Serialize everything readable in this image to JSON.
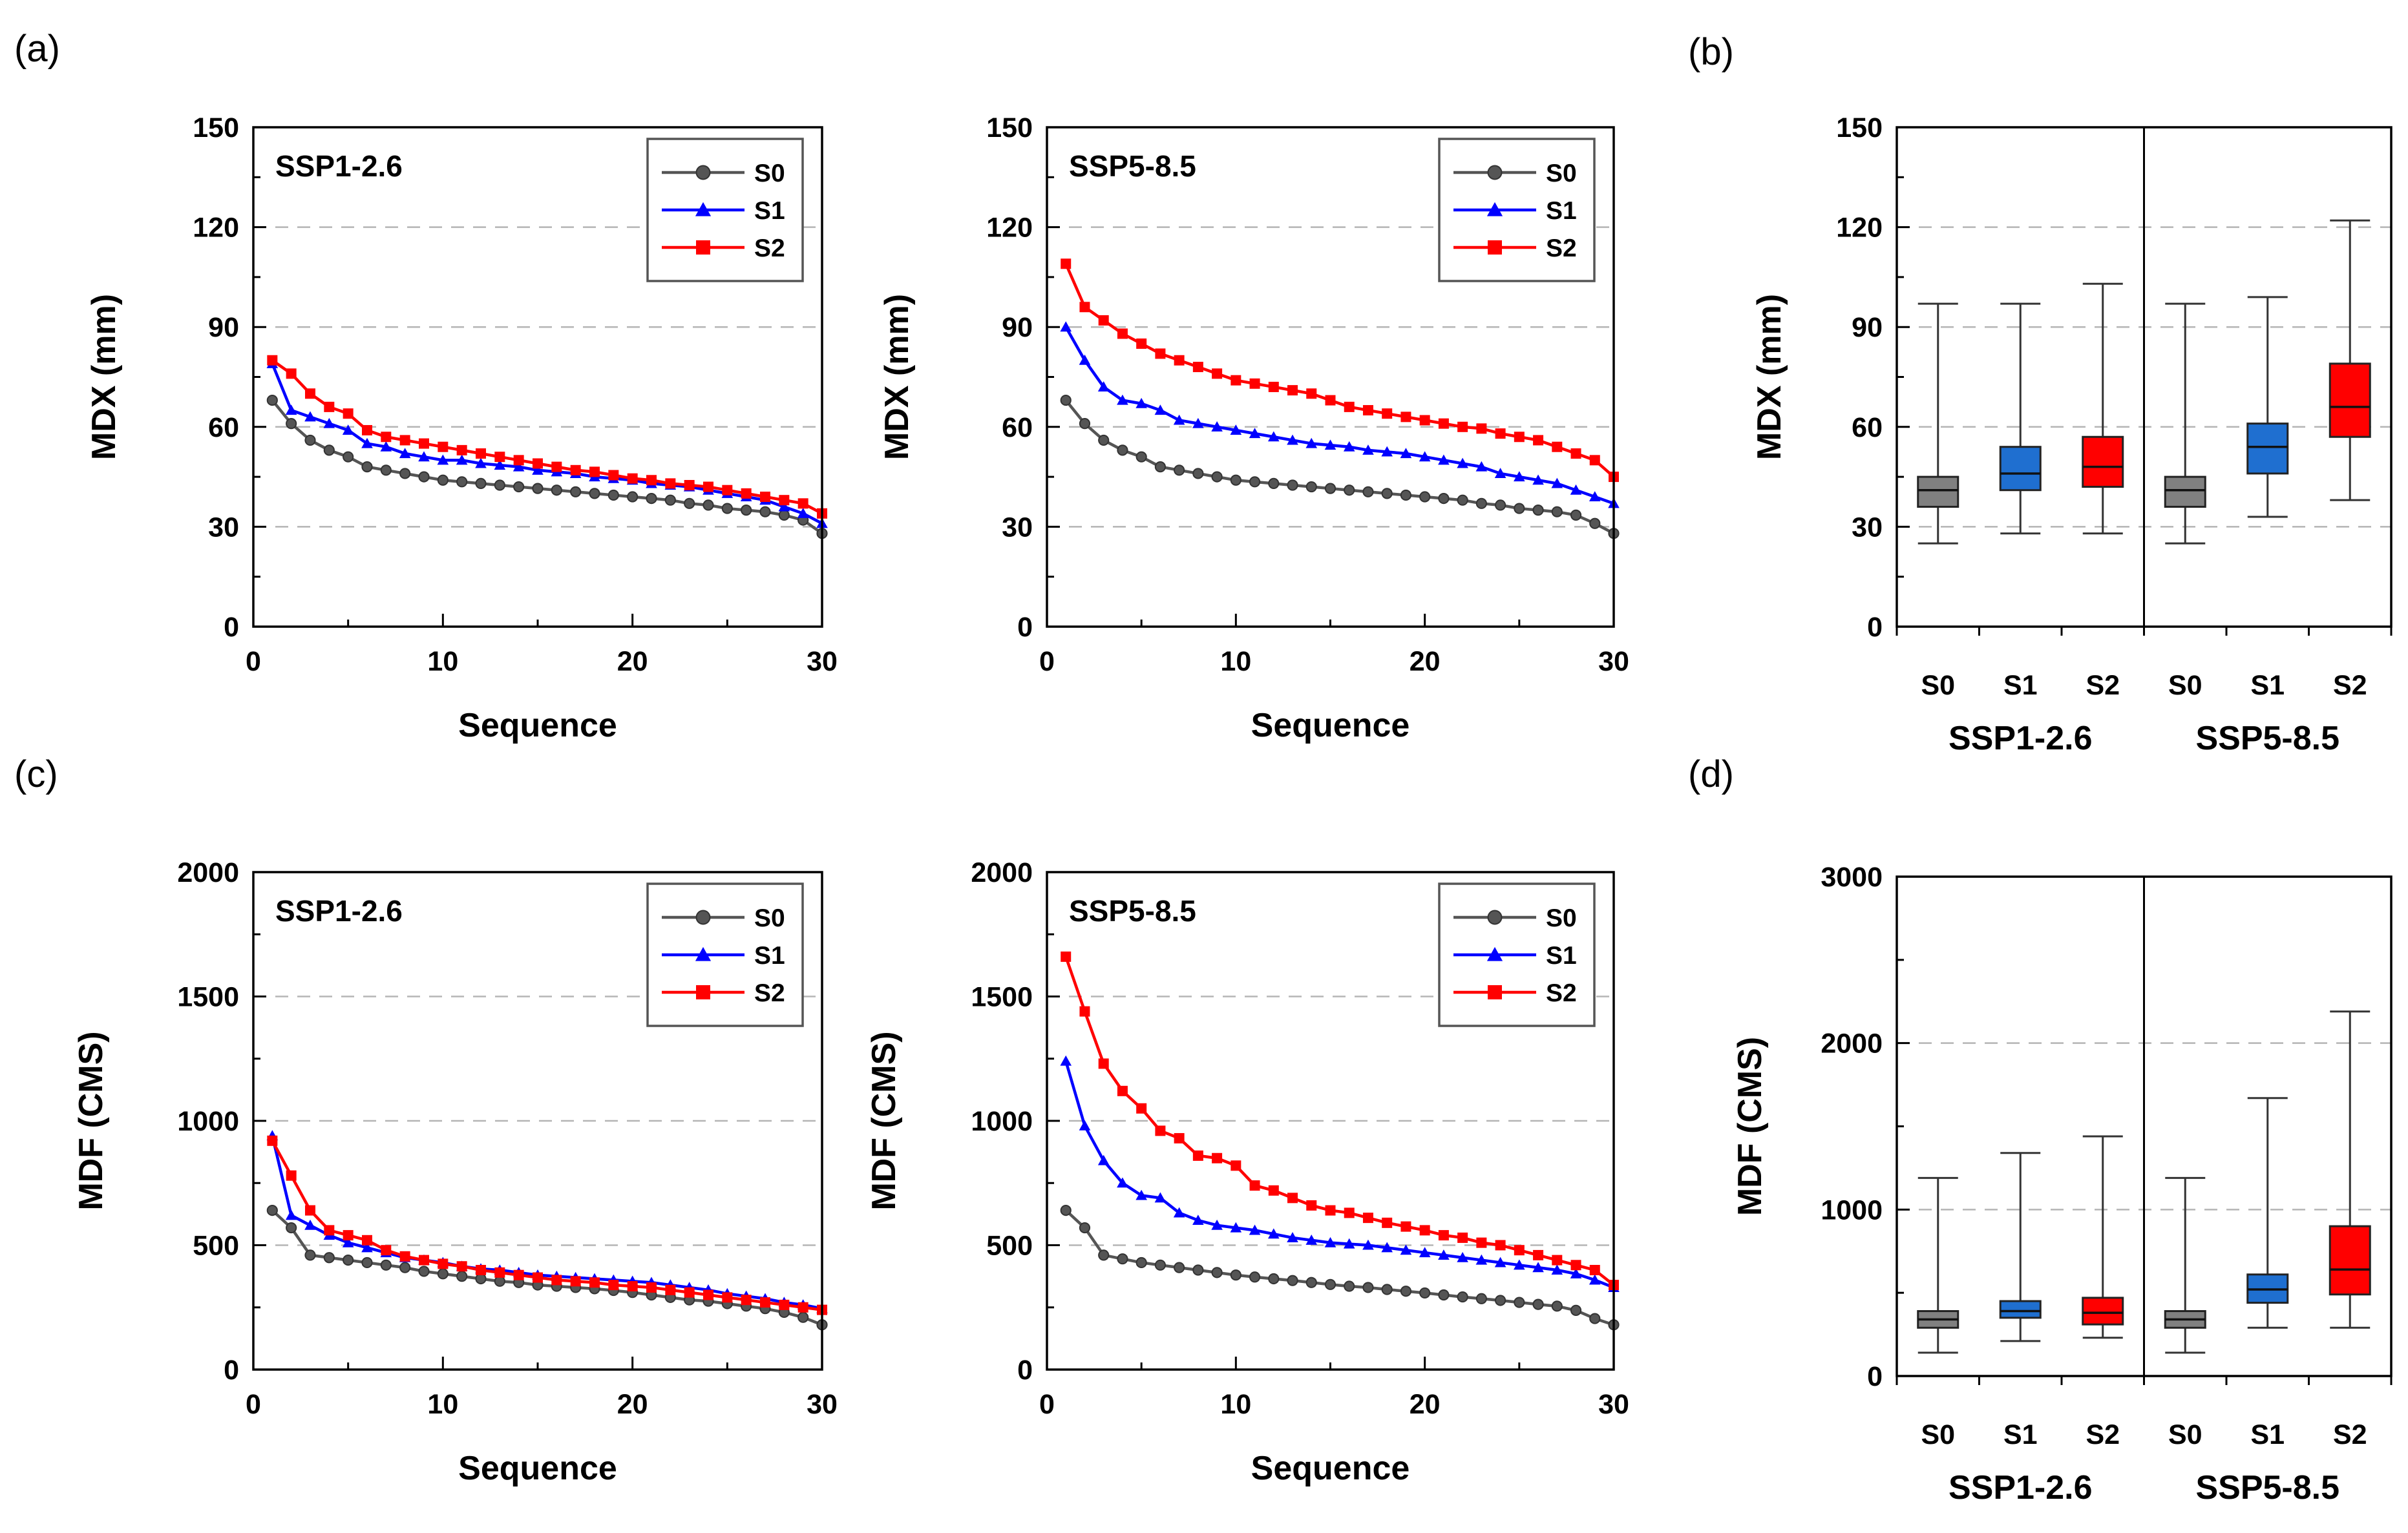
{
  "panel_letters": {
    "a": "(a)",
    "b": "(b)",
    "c": "(c)",
    "d": "(d)"
  },
  "colors": {
    "S0": "#555555",
    "S1": "#0000ff",
    "S2": "#ff0000",
    "S0_box": "#808080",
    "S1_box": "#1f6fd0",
    "S2_box": "#ff0000",
    "grid": "#b5b5b5"
  },
  "chart_data": [
    {
      "id": "a-left",
      "type": "line",
      "panel": "(a)",
      "title": "SSP1-2.6",
      "xlabel": "Sequence",
      "ylabel": "MDX (mm)",
      "xlim": [
        0,
        30
      ],
      "ylim": [
        0,
        150
      ],
      "xticks": [
        0,
        10,
        20,
        30
      ],
      "yticks": [
        0,
        30,
        60,
        90,
        120,
        150
      ],
      "grid": true,
      "legend": "top-right",
      "series": [
        {
          "name": "S0",
          "marker": "circle",
          "x": [
            1,
            2,
            3,
            4,
            5,
            6,
            7,
            8,
            9,
            10,
            11,
            12,
            13,
            14,
            15,
            16,
            17,
            18,
            19,
            20,
            21,
            22,
            23,
            24,
            25,
            26,
            27,
            28,
            29,
            30
          ],
          "values": [
            68,
            61,
            56,
            53,
            51,
            48,
            47,
            46,
            45,
            44,
            43.5,
            43,
            42.5,
            42,
            41.5,
            41,
            40.5,
            40,
            39.5,
            39,
            38.5,
            38,
            37,
            36.5,
            35.5,
            35,
            34.5,
            33.5,
            32,
            28
          ]
        },
        {
          "name": "S1",
          "marker": "triangle",
          "x": [
            1,
            2,
            3,
            4,
            5,
            6,
            7,
            8,
            9,
            10,
            11,
            12,
            13,
            14,
            15,
            16,
            17,
            18,
            19,
            20,
            21,
            22,
            23,
            24,
            25,
            26,
            27,
            28,
            29,
            30
          ],
          "values": [
            79,
            65,
            63,
            61,
            59,
            55,
            54,
            52,
            51,
            50,
            50,
            49,
            48.5,
            48,
            47,
            46.5,
            46,
            45,
            44.5,
            44,
            43,
            42.5,
            42,
            41,
            40,
            39,
            38,
            36,
            34,
            31
          ]
        },
        {
          "name": "S2",
          "marker": "square",
          "x": [
            1,
            2,
            3,
            4,
            5,
            6,
            7,
            8,
            9,
            10,
            11,
            12,
            13,
            14,
            15,
            16,
            17,
            18,
            19,
            20,
            21,
            22,
            23,
            24,
            25,
            26,
            27,
            28,
            29,
            30
          ],
          "values": [
            80,
            76,
            70,
            66,
            64,
            59,
            57,
            56,
            55,
            54,
            53,
            52,
            51,
            50,
            49,
            48,
            47,
            46.5,
            45.5,
            44.5,
            44,
            43,
            42.5,
            42,
            41,
            40,
            39,
            38,
            37,
            34
          ]
        }
      ]
    },
    {
      "id": "a-right",
      "type": "line",
      "panel": "(a)",
      "title": "SSP5-8.5",
      "xlabel": "Sequence",
      "ylabel": "MDX (mm)",
      "xlim": [
        0,
        30
      ],
      "ylim": [
        0,
        150
      ],
      "xticks": [
        0,
        10,
        20,
        30
      ],
      "yticks": [
        0,
        30,
        60,
        90,
        120,
        150
      ],
      "grid": true,
      "legend": "top-right",
      "series": [
        {
          "name": "S0",
          "marker": "circle",
          "x": [
            1,
            2,
            3,
            4,
            5,
            6,
            7,
            8,
            9,
            10,
            11,
            12,
            13,
            14,
            15,
            16,
            17,
            18,
            19,
            20,
            21,
            22,
            23,
            24,
            25,
            26,
            27,
            28,
            29,
            30
          ],
          "values": [
            68,
            61,
            56,
            53,
            51,
            48,
            47,
            46,
            45,
            44,
            43.5,
            43,
            42.5,
            42,
            41.5,
            41,
            40.5,
            40,
            39.5,
            39,
            38.5,
            38,
            37,
            36.5,
            35.5,
            35,
            34.5,
            33.5,
            31,
            28
          ]
        },
        {
          "name": "S1",
          "marker": "triangle",
          "x": [
            1,
            2,
            3,
            4,
            5,
            6,
            7,
            8,
            9,
            10,
            11,
            12,
            13,
            14,
            15,
            16,
            17,
            18,
            19,
            20,
            21,
            22,
            23,
            24,
            25,
            26,
            27,
            28,
            29,
            30
          ],
          "values": [
            90,
            80,
            72,
            68,
            67,
            65,
            62,
            61,
            60,
            59,
            58,
            57,
            56,
            55,
            54.5,
            54,
            53,
            52.5,
            52,
            51,
            50,
            49,
            48,
            46,
            45,
            44,
            43,
            41,
            39,
            37
          ]
        },
        {
          "name": "S2",
          "marker": "square",
          "x": [
            1,
            2,
            3,
            4,
            5,
            6,
            7,
            8,
            9,
            10,
            11,
            12,
            13,
            14,
            15,
            16,
            17,
            18,
            19,
            20,
            21,
            22,
            23,
            24,
            25,
            26,
            27,
            28,
            29,
            30
          ],
          "values": [
            109,
            96,
            92,
            88,
            85,
            82,
            80,
            78,
            76,
            74,
            73,
            72,
            71,
            70,
            68,
            66,
            65,
            64,
            63,
            62,
            61,
            60,
            59.5,
            58,
            57,
            56,
            54,
            52,
            50,
            45
          ]
        }
      ]
    },
    {
      "id": "b",
      "type": "box",
      "panel": "(b)",
      "ylabel": "MDX (mm)",
      "ylim": [
        0,
        150
      ],
      "yticks": [
        0,
        30,
        60,
        90,
        120,
        150
      ],
      "grid": true,
      "groups": [
        "SSP1-2.6",
        "SSP5-8.5"
      ],
      "boxes": [
        {
          "group": "SSP1-2.6",
          "label": "S0",
          "min": 25,
          "q1": 36,
          "median": 41,
          "q3": 45,
          "max": 97
        },
        {
          "group": "SSP1-2.6",
          "label": "S1",
          "min": 28,
          "q1": 41,
          "median": 46,
          "q3": 54,
          "max": 97
        },
        {
          "group": "SSP1-2.6",
          "label": "S2",
          "min": 28,
          "q1": 42,
          "median": 48,
          "q3": 57,
          "max": 103
        },
        {
          "group": "SSP5-8.5",
          "label": "S0",
          "min": 25,
          "q1": 36,
          "median": 41,
          "q3": 45,
          "max": 97
        },
        {
          "group": "SSP5-8.5",
          "label": "S1",
          "min": 33,
          "q1": 46,
          "median": 54,
          "q3": 61,
          "max": 99
        },
        {
          "group": "SSP5-8.5",
          "label": "S2",
          "min": 38,
          "q1": 57,
          "median": 66,
          "q3": 79,
          "max": 122
        }
      ]
    },
    {
      "id": "c-left",
      "type": "line",
      "panel": "(c)",
      "title": "SSP1-2.6",
      "xlabel": "Sequence",
      "ylabel": "MDF (CMS)",
      "xlim": [
        0,
        30
      ],
      "ylim": [
        0,
        2000
      ],
      "xticks": [
        0,
        10,
        20,
        30
      ],
      "yticks": [
        0,
        500,
        1000,
        1500,
        2000
      ],
      "grid": true,
      "legend": "top-right",
      "series": [
        {
          "name": "S0",
          "marker": "circle",
          "x": [
            1,
            2,
            3,
            4,
            5,
            6,
            7,
            8,
            9,
            10,
            11,
            12,
            13,
            14,
            15,
            16,
            17,
            18,
            19,
            20,
            21,
            22,
            23,
            24,
            25,
            26,
            27,
            28,
            29,
            30
          ],
          "values": [
            640,
            570,
            460,
            450,
            440,
            430,
            420,
            410,
            395,
            385,
            375,
            365,
            355,
            350,
            340,
            335,
            330,
            325,
            318,
            310,
            300,
            290,
            280,
            275,
            265,
            255,
            245,
            230,
            210,
            180
          ]
        },
        {
          "name": "S1",
          "marker": "triangle",
          "x": [
            1,
            2,
            3,
            4,
            5,
            6,
            7,
            8,
            9,
            10,
            11,
            12,
            13,
            14,
            15,
            16,
            17,
            18,
            19,
            20,
            21,
            22,
            23,
            24,
            25,
            26,
            27,
            28,
            29,
            30
          ],
          "values": [
            940,
            620,
            580,
            540,
            510,
            490,
            470,
            450,
            440,
            430,
            415,
            405,
            400,
            390,
            380,
            375,
            370,
            365,
            360,
            355,
            350,
            340,
            330,
            320,
            305,
            295,
            285,
            270,
            260,
            245
          ]
        },
        {
          "name": "S2",
          "marker": "square",
          "x": [
            1,
            2,
            3,
            4,
            5,
            6,
            7,
            8,
            9,
            10,
            11,
            12,
            13,
            14,
            15,
            16,
            17,
            18,
            19,
            20,
            21,
            22,
            23,
            24,
            25,
            26,
            27,
            28,
            29,
            30
          ],
          "values": [
            920,
            780,
            640,
            560,
            540,
            520,
            480,
            455,
            440,
            425,
            415,
            400,
            390,
            380,
            370,
            360,
            355,
            350,
            340,
            335,
            330,
            320,
            310,
            300,
            290,
            280,
            270,
            260,
            250,
            240
          ]
        }
      ]
    },
    {
      "id": "c-right",
      "type": "line",
      "panel": "(c)",
      "title": "SSP5-8.5",
      "xlabel": "Sequence",
      "ylabel": "MDF (CMS)",
      "xlim": [
        0,
        30
      ],
      "ylim": [
        0,
        2000
      ],
      "xticks": [
        0,
        10,
        20,
        30
      ],
      "yticks": [
        0,
        500,
        1000,
        1500,
        2000
      ],
      "grid": true,
      "legend": "top-right",
      "series": [
        {
          "name": "S0",
          "marker": "circle",
          "x": [
            1,
            2,
            3,
            4,
            5,
            6,
            7,
            8,
            9,
            10,
            11,
            12,
            13,
            14,
            15,
            16,
            17,
            18,
            19,
            20,
            21,
            22,
            23,
            24,
            25,
            26,
            27,
            28,
            29,
            30
          ],
          "values": [
            640,
            570,
            460,
            445,
            430,
            420,
            410,
            400,
            390,
            380,
            372,
            365,
            358,
            350,
            342,
            335,
            330,
            322,
            315,
            308,
            300,
            292,
            285,
            278,
            270,
            262,
            255,
            238,
            205,
            180
          ]
        },
        {
          "name": "S1",
          "marker": "triangle",
          "x": [
            1,
            2,
            3,
            4,
            5,
            6,
            7,
            8,
            9,
            10,
            11,
            12,
            13,
            14,
            15,
            16,
            17,
            18,
            19,
            20,
            21,
            22,
            23,
            24,
            25,
            26,
            27,
            28,
            29,
            30
          ],
          "values": [
            1240,
            980,
            840,
            750,
            700,
            690,
            630,
            600,
            580,
            570,
            560,
            545,
            530,
            520,
            510,
            505,
            500,
            490,
            480,
            470,
            460,
            450,
            440,
            430,
            420,
            410,
            400,
            385,
            360,
            330
          ]
        },
        {
          "name": "S2",
          "marker": "square",
          "x": [
            1,
            2,
            3,
            4,
            5,
            6,
            7,
            8,
            9,
            10,
            11,
            12,
            13,
            14,
            15,
            16,
            17,
            18,
            19,
            20,
            21,
            22,
            23,
            24,
            25,
            26,
            27,
            28,
            29,
            30
          ],
          "values": [
            1660,
            1440,
            1230,
            1120,
            1050,
            960,
            930,
            860,
            850,
            820,
            740,
            720,
            690,
            660,
            640,
            630,
            610,
            590,
            575,
            560,
            540,
            530,
            510,
            500,
            480,
            460,
            440,
            420,
            400,
            340
          ]
        }
      ]
    },
    {
      "id": "d",
      "type": "box",
      "panel": "(d)",
      "ylabel": "MDF (CMS)",
      "ylim": [
        0,
        3000
      ],
      "yticks": [
        0,
        1000,
        2000,
        3000
      ],
      "grid": true,
      "groups": [
        "SSP1-2.6",
        "SSP5-8.5"
      ],
      "boxes": [
        {
          "group": "SSP1-2.6",
          "label": "S0",
          "min": 140,
          "q1": 290,
          "median": 340,
          "q3": 390,
          "max": 1190
        },
        {
          "group": "SSP1-2.6",
          "label": "S1",
          "min": 210,
          "q1": 350,
          "median": 390,
          "q3": 450,
          "max": 1340
        },
        {
          "group": "SSP1-2.6",
          "label": "S2",
          "min": 230,
          "q1": 310,
          "median": 380,
          "q3": 470,
          "max": 1440
        },
        {
          "group": "SSP5-8.5",
          "label": "S0",
          "min": 140,
          "q1": 290,
          "median": 340,
          "q3": 390,
          "max": 1190
        },
        {
          "group": "SSP5-8.5",
          "label": "S1",
          "min": 290,
          "q1": 440,
          "median": 520,
          "q3": 610,
          "max": 1670
        },
        {
          "group": "SSP5-8.5",
          "label": "S2",
          "min": 290,
          "q1": 490,
          "median": 640,
          "q3": 900,
          "max": 2190
        }
      ]
    }
  ]
}
